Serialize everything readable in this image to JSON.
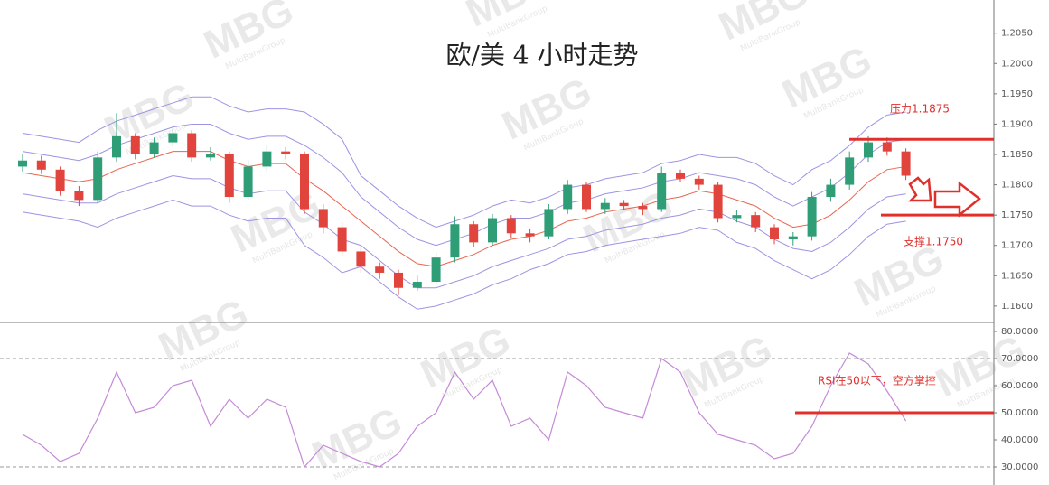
{
  "watermark": "MBG",
  "watermark_sub": "MultiBankGroup",
  "chart_data": [
    {
      "type": "candlestick",
      "title": "欧/美 4 小时走势",
      "up_color": "#2f9e77",
      "down_color": "#e0443c",
      "open": [
        1.183,
        1.184,
        1.1825,
        1.179,
        1.1775,
        1.1845,
        1.188,
        1.185,
        1.187,
        1.1885,
        1.1845,
        1.185,
        1.178,
        1.183,
        1.1855,
        1.185,
        1.176,
        1.173,
        1.169,
        1.1665,
        1.1655,
        1.163,
        1.164,
        1.168,
        1.1735,
        1.1705,
        1.1745,
        1.172,
        1.1715,
        1.176,
        1.18,
        1.176,
        1.177,
        1.1765,
        1.176,
        1.182,
        1.181,
        1.18,
        1.1745,
        1.175,
        1.173,
        1.171,
        1.1715,
        1.178,
        1.18,
        1.1845,
        1.187,
        1.1855
      ],
      "high": [
        1.185,
        1.1848,
        1.183,
        1.1798,
        1.1855,
        1.1918,
        1.1885,
        1.1878,
        1.1898,
        1.189,
        1.1862,
        1.1855,
        1.184,
        1.1865,
        1.1862,
        1.1855,
        1.1768,
        1.1738,
        1.1698,
        1.1672,
        1.166,
        1.165,
        1.1688,
        1.1748,
        1.174,
        1.1752,
        1.175,
        1.1728,
        1.1768,
        1.1808,
        1.1805,
        1.1778,
        1.1775,
        1.177,
        1.183,
        1.1825,
        1.1815,
        1.1805,
        1.1758,
        1.1755,
        1.1735,
        1.1722,
        1.1788,
        1.181,
        1.1855,
        1.188,
        1.1878,
        1.186
      ],
      "low": [
        1.1822,
        1.1818,
        1.1782,
        1.1765,
        1.177,
        1.1838,
        1.1842,
        1.1845,
        1.1862,
        1.1838,
        1.184,
        1.177,
        1.1775,
        1.1822,
        1.1842,
        1.1752,
        1.172,
        1.1682,
        1.1655,
        1.1645,
        1.1618,
        1.1625,
        1.1635,
        1.1672,
        1.1698,
        1.17,
        1.1712,
        1.1705,
        1.171,
        1.1752,
        1.1755,
        1.1752,
        1.1758,
        1.175,
        1.1755,
        1.1805,
        1.1792,
        1.1738,
        1.1738,
        1.1722,
        1.1702,
        1.17,
        1.1708,
        1.1772,
        1.1792,
        1.1838,
        1.1848,
        1.1808
      ],
      "close": [
        1.184,
        1.1825,
        1.179,
        1.1775,
        1.1845,
        1.188,
        1.185,
        1.187,
        1.1885,
        1.1845,
        1.185,
        1.178,
        1.183,
        1.1855,
        1.185,
        1.176,
        1.173,
        1.169,
        1.1665,
        1.1655,
        1.163,
        1.164,
        1.168,
        1.1735,
        1.1705,
        1.1745,
        1.172,
        1.1715,
        1.176,
        1.18,
        1.176,
        1.177,
        1.1765,
        1.176,
        1.182,
        1.181,
        1.18,
        1.1745,
        1.175,
        1.173,
        1.171,
        1.1715,
        1.178,
        1.18,
        1.1845,
        1.187,
        1.1855,
        1.1815
      ],
      "series": [
        {
          "color": "#9d94e2",
          "values": [
            1.1885,
            1.188,
            1.1875,
            1.187,
            1.189,
            1.1905,
            1.1915,
            1.1925,
            1.1935,
            1.1945,
            1.1945,
            1.193,
            1.192,
            1.1925,
            1.1925,
            1.192,
            1.19,
            1.1875,
            1.1815,
            1.179,
            1.1765,
            1.1745,
            1.173,
            1.174,
            1.175,
            1.1765,
            1.1775,
            1.177,
            1.178,
            1.1795,
            1.18,
            1.181,
            1.1815,
            1.182,
            1.1835,
            1.184,
            1.185,
            1.1845,
            1.1845,
            1.1835,
            1.1815,
            1.18,
            1.1825,
            1.184,
            1.1865,
            1.1895,
            1.1915,
            1.192
          ]
        },
        {
          "color": "#9d94e2",
          "values": [
            1.1855,
            1.185,
            1.1845,
            1.184,
            1.185,
            1.1865,
            1.1875,
            1.1885,
            1.1895,
            1.19,
            1.19,
            1.1885,
            1.1875,
            1.188,
            1.188,
            1.1865,
            1.1845,
            1.182,
            1.178,
            1.1755,
            1.173,
            1.171,
            1.17,
            1.171,
            1.172,
            1.1735,
            1.1745,
            1.1745,
            1.1755,
            1.177,
            1.1775,
            1.1785,
            1.179,
            1.1795,
            1.1805,
            1.181,
            1.182,
            1.1815,
            1.181,
            1.18,
            1.178,
            1.1765,
            1.178,
            1.1795,
            1.182,
            1.185,
            1.187,
            1.1875
          ]
        },
        {
          "color": "#e8664f",
          "values": [
            1.182,
            1.1815,
            1.181,
            1.1805,
            1.181,
            1.1825,
            1.1835,
            1.1845,
            1.1855,
            1.1855,
            1.1855,
            1.184,
            1.183,
            1.1835,
            1.1835,
            1.181,
            1.179,
            1.1765,
            1.174,
            1.1715,
            1.169,
            1.167,
            1.1665,
            1.1675,
            1.1685,
            1.17,
            1.171,
            1.1715,
            1.1725,
            1.174,
            1.1745,
            1.1755,
            1.176,
            1.1765,
            1.1775,
            1.178,
            1.179,
            1.1785,
            1.1775,
            1.1765,
            1.1745,
            1.173,
            1.1735,
            1.175,
            1.1775,
            1.1805,
            1.1825,
            1.183
          ]
        },
        {
          "color": "#9d94e2",
          "values": [
            1.1785,
            1.178,
            1.1775,
            1.177,
            1.177,
            1.1785,
            1.1795,
            1.1805,
            1.1815,
            1.181,
            1.181,
            1.1795,
            1.1785,
            1.179,
            1.179,
            1.1755,
            1.1735,
            1.171,
            1.17,
            1.1675,
            1.165,
            1.163,
            1.163,
            1.164,
            1.165,
            1.1665,
            1.1675,
            1.1685,
            1.1695,
            1.171,
            1.1715,
            1.1725,
            1.173,
            1.1735,
            1.1745,
            1.175,
            1.176,
            1.1755,
            1.174,
            1.173,
            1.171,
            1.1695,
            1.169,
            1.1705,
            1.173,
            1.176,
            1.178,
            1.1785
          ]
        },
        {
          "color": "#9d94e2",
          "values": [
            1.1755,
            1.175,
            1.1745,
            1.174,
            1.173,
            1.1745,
            1.1755,
            1.1765,
            1.1775,
            1.1765,
            1.1765,
            1.175,
            1.174,
            1.1745,
            1.1745,
            1.17,
            1.168,
            1.1655,
            1.1665,
            1.164,
            1.1615,
            1.1595,
            1.16,
            1.161,
            1.162,
            1.1635,
            1.1645,
            1.166,
            1.167,
            1.1685,
            1.169,
            1.17,
            1.1705,
            1.171,
            1.1715,
            1.172,
            1.173,
            1.1725,
            1.1705,
            1.1695,
            1.1675,
            1.166,
            1.1645,
            1.166,
            1.1685,
            1.1715,
            1.1735,
            1.174
          ]
        }
      ],
      "levels": [
        {
          "value": 1.1875,
          "label": "压力1.1875",
          "color": "#e0302c"
        },
        {
          "value": 1.175,
          "label": "支撑1.1750",
          "color": "#e0302c"
        }
      ],
      "ylim": [
        1.1576,
        1.206
      ],
      "yticks": [
        {
          "value": 1.205,
          "label": "1.2050"
        },
        {
          "value": 1.2,
          "label": "1.2000"
        },
        {
          "value": 1.195,
          "label": "1.1950"
        },
        {
          "value": 1.19,
          "label": "1.1900"
        },
        {
          "value": 1.185,
          "label": "1.1850"
        },
        {
          "value": 1.18,
          "label": "1.1800"
        },
        {
          "value": 1.175,
          "label": "1.1750"
        },
        {
          "value": 1.17,
          "label": "1.1700"
        },
        {
          "value": 1.165,
          "label": "1.1650"
        },
        {
          "value": 1.16,
          "label": "1.1600"
        }
      ]
    },
    {
      "type": "line",
      "color": "#c48ad6",
      "values": [
        42,
        38,
        32,
        35,
        48,
        65,
        50,
        52,
        60,
        62,
        45,
        55,
        48,
        55,
        52,
        30,
        38,
        35,
        32,
        30,
        35,
        45,
        50,
        65,
        55,
        62,
        45,
        48,
        40,
        65,
        60,
        52,
        50,
        48,
        70,
        65,
        50,
        42,
        40,
        38,
        33,
        35,
        45,
        60,
        72,
        68,
        58,
        47
      ],
      "ylim": [
        26,
        83
      ],
      "yticks": [
        {
          "value": 80,
          "label": "80.0000"
        },
        {
          "value": 70,
          "label": "70.0000"
        },
        {
          "value": 60,
          "label": "60.0000"
        },
        {
          "value": 50,
          "label": "50.0000"
        },
        {
          "value": 40,
          "label": "40.0000"
        },
        {
          "value": 30,
          "label": "30.0000"
        }
      ],
      "dashed_lines": [
        70,
        30
      ],
      "levels": [
        {
          "value": 50,
          "label": "RSI在50以下，空方掌控",
          "color": "#e0302c"
        }
      ]
    }
  ]
}
